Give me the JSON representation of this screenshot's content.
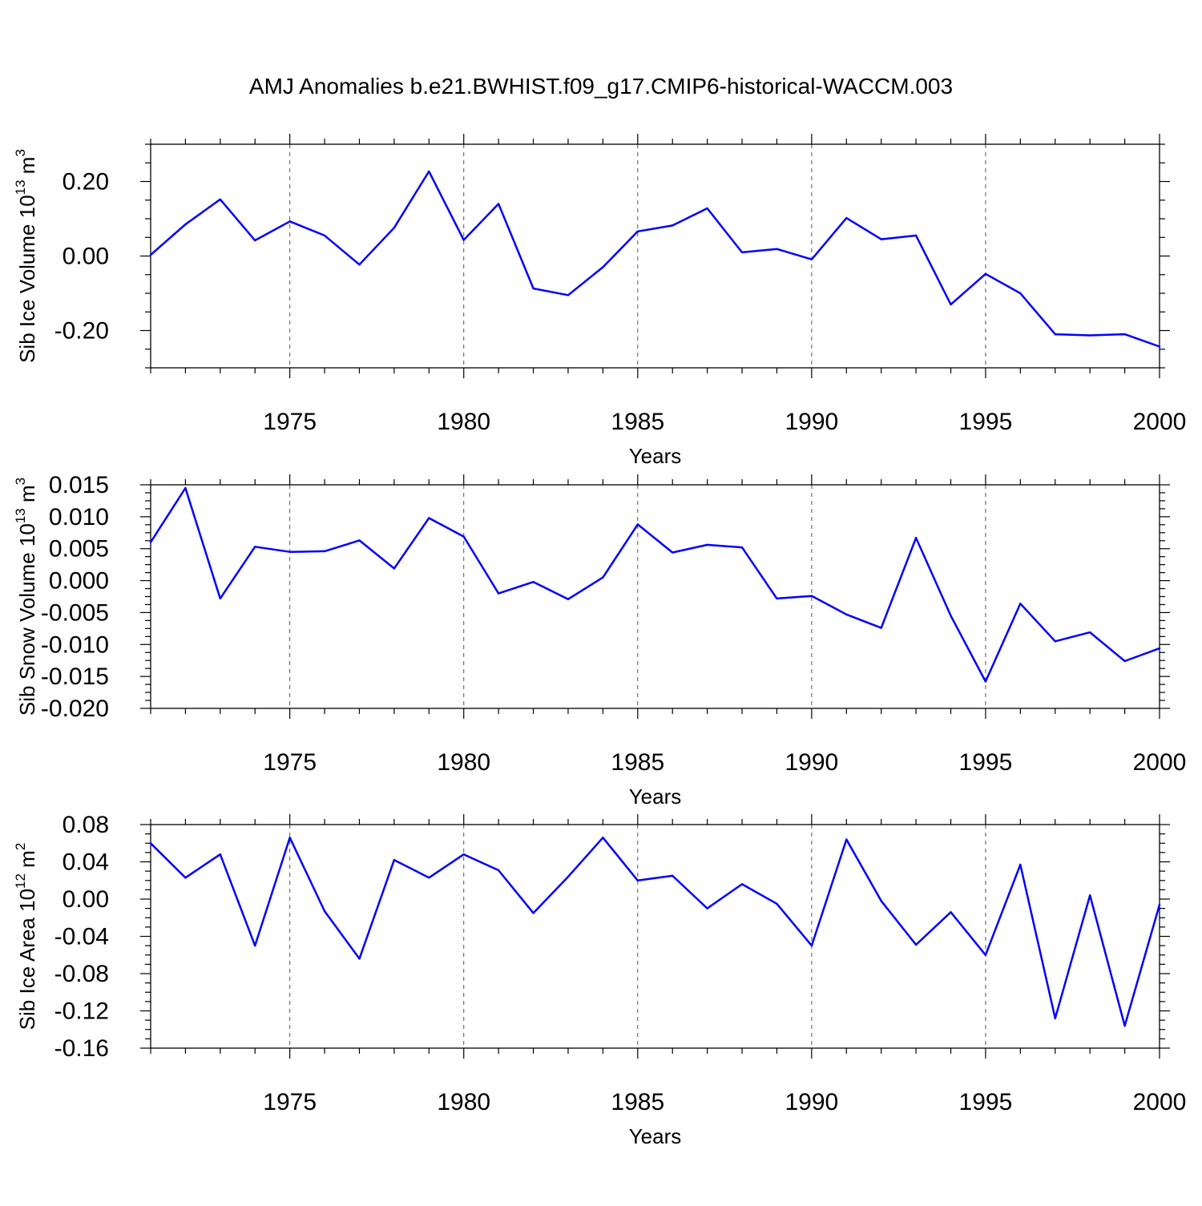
{
  "title": "AMJ Anomalies b.e21.BWHIST.f09_g17.CMIP6-historical-WACCM.003",
  "colors": {
    "series": "#0000ff",
    "axes": "#000000",
    "grid": "#555555"
  },
  "chart_data": [
    {
      "type": "line",
      "xlabel": "Years",
      "ylabel": {
        "base": "Sib Ice Volume 10",
        "exp": "13",
        "unit": " m",
        "unit_exp": "3"
      },
      "xlim": [
        1971,
        2000
      ],
      "ylim": [
        -0.3,
        0.3
      ],
      "xticks": [
        1975,
        1980,
        1985,
        1990,
        1995,
        2000
      ],
      "xtick_labels": [
        "1975",
        "1980",
        "1985",
        "1990",
        "1995",
        "2000"
      ],
      "yticks": [
        -0.2,
        0.0,
        0.2
      ],
      "ytick_labels": [
        "-0.20",
        "0.00",
        "0.20"
      ],
      "grid": "dashed vertical at x ticks",
      "x": [
        1971,
        1972,
        1973,
        1974,
        1975,
        1976,
        1977,
        1978,
        1979,
        1980,
        1981,
        1982,
        1983,
        1984,
        1985,
        1986,
        1987,
        1988,
        1989,
        1990,
        1991,
        1992,
        1993,
        1994,
        1995,
        1996,
        1997,
        1998,
        1999,
        2000
      ],
      "values": [
        0.003,
        0.085,
        0.152,
        0.042,
        0.093,
        0.055,
        -0.023,
        0.076,
        0.227,
        0.043,
        0.14,
        -0.087,
        -0.105,
        -0.03,
        0.066,
        0.082,
        0.128,
        0.01,
        0.019,
        -0.009,
        0.102,
        0.045,
        0.055,
        -0.13,
        -0.048,
        -0.1,
        -0.21,
        -0.213,
        -0.21,
        -0.243
      ]
    },
    {
      "type": "line",
      "xlabel": "Years",
      "ylabel": {
        "base": "Sib Snow Volume 10",
        "exp": "13",
        "unit": " m",
        "unit_exp": "3"
      },
      "xlim": [
        1971,
        2000
      ],
      "ylim": [
        -0.02,
        0.015
      ],
      "xticks": [
        1975,
        1980,
        1985,
        1990,
        1995,
        2000
      ],
      "xtick_labels": [
        "1975",
        "1980",
        "1985",
        "1990",
        "1995",
        "2000"
      ],
      "yticks": [
        -0.02,
        -0.015,
        -0.01,
        -0.005,
        0.0,
        0.005,
        0.01,
        0.015
      ],
      "ytick_labels": [
        "-0.020",
        "-0.015",
        "-0.010",
        "-0.005",
        "0.000",
        "0.005",
        "0.010",
        "0.015"
      ],
      "grid": "dashed vertical at x ticks",
      "x": [
        1971,
        1972,
        1973,
        1974,
        1975,
        1976,
        1977,
        1978,
        1979,
        1980,
        1981,
        1982,
        1983,
        1984,
        1985,
        1986,
        1987,
        1988,
        1989,
        1990,
        1991,
        1992,
        1993,
        1994,
        1995,
        1996,
        1997,
        1998,
        1999,
        2000
      ],
      "values": [
        0.006,
        0.0145,
        -0.0028,
        0.0053,
        0.0045,
        0.0046,
        0.0063,
        0.0019,
        0.0098,
        0.0069,
        -0.002,
        -0.0002,
        -0.0029,
        0.0005,
        0.0088,
        0.0044,
        0.0056,
        0.0052,
        -0.0028,
        -0.0024,
        -0.0053,
        -0.0074,
        0.0067,
        -0.0055,
        -0.0158,
        -0.0036,
        -0.0095,
        -0.0081,
        -0.0126,
        -0.0106
      ]
    },
    {
      "type": "line",
      "xlabel": "Years",
      "ylabel": {
        "base": "Sib Ice Area 10",
        "exp": "12",
        "unit": " m",
        "unit_exp": "2"
      },
      "xlim": [
        1971,
        2000
      ],
      "ylim": [
        -0.16,
        0.08
      ],
      "xticks": [
        1975,
        1980,
        1985,
        1990,
        1995,
        2000
      ],
      "xtick_labels": [
        "1975",
        "1980",
        "1985",
        "1990",
        "1995",
        "2000"
      ],
      "yticks": [
        -0.16,
        -0.12,
        -0.08,
        -0.04,
        0.0,
        0.04,
        0.08
      ],
      "ytick_labels": [
        "-0.16",
        "-0.12",
        "-0.08",
        "-0.04",
        "0.00",
        "0.04",
        "0.08"
      ],
      "grid": "dashed vertical at x ticks",
      "x": [
        1971,
        1972,
        1973,
        1974,
        1975,
        1976,
        1977,
        1978,
        1979,
        1980,
        1981,
        1982,
        1983,
        1984,
        1985,
        1986,
        1987,
        1988,
        1989,
        1990,
        1991,
        1992,
        1993,
        1994,
        1995,
        1996,
        1997,
        1998,
        1999,
        2000
      ],
      "values": [
        0.06,
        0.023,
        0.048,
        -0.05,
        0.066,
        -0.013,
        -0.064,
        0.042,
        0.023,
        0.048,
        0.031,
        -0.015,
        0.024,
        0.066,
        0.02,
        0.025,
        -0.01,
        0.016,
        -0.005,
        -0.05,
        0.064,
        -0.002,
        -0.049,
        -0.014,
        -0.06,
        0.037,
        -0.128,
        0.004,
        -0.136,
        -0.006
      ]
    }
  ]
}
